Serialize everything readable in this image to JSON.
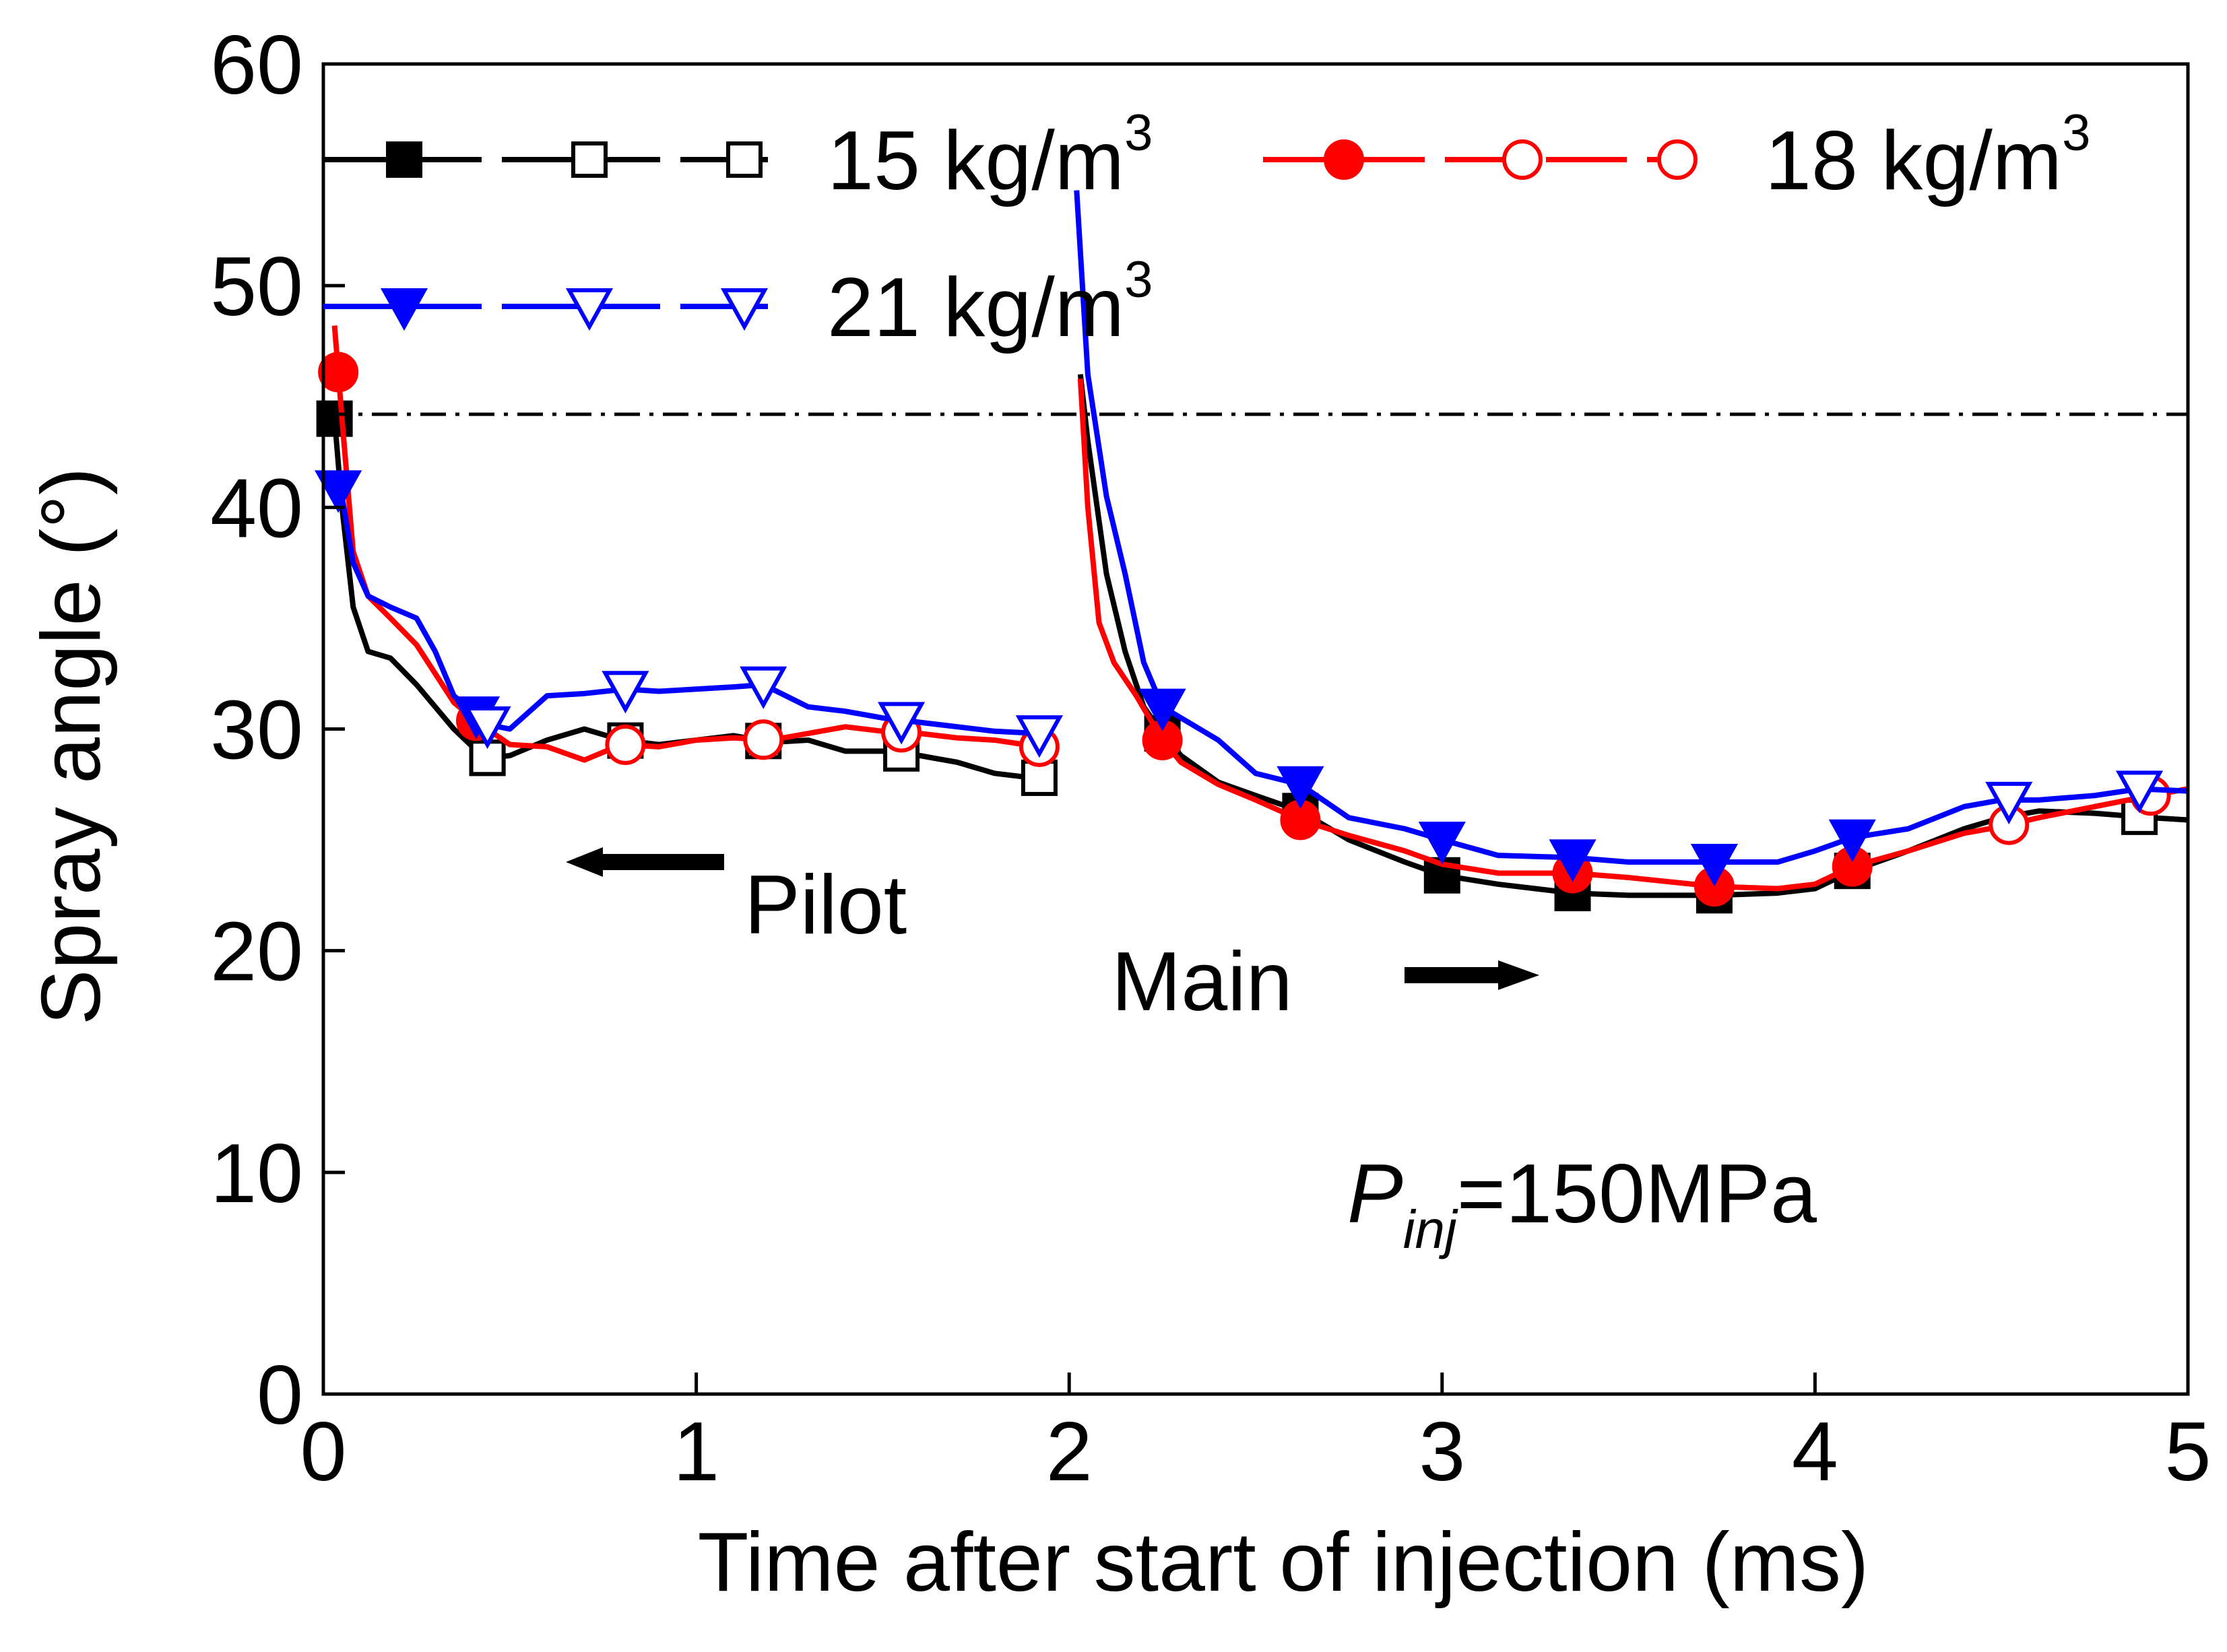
{
  "chart_data": {
    "type": "line",
    "xlabel": "Time after start of injection (ms)",
    "ylabel": "Spray angle (°)",
    "xlim": [
      0,
      5
    ],
    "ylim": [
      0,
      60
    ],
    "xticks": [
      0,
      1,
      2,
      3,
      4,
      5
    ],
    "yticks": [
      0,
      10,
      20,
      30,
      40,
      50,
      60
    ],
    "grid": false,
    "legend_position": "top",
    "reference_line": {
      "y": 44.2,
      "style": "dash-dot"
    },
    "annotations": {
      "pilot": "Pilot",
      "main": "Main",
      "pressure_prefix": "P",
      "pressure_subscript": "inj",
      "pressure_value": "=150MPa"
    },
    "series": [
      {
        "name": "15 kg/m",
        "name_sup": "3",
        "color": "#000000",
        "marker": "square",
        "pilot": {
          "x": [
            0.03,
            0.05,
            0.08,
            0.12,
            0.18,
            0.25,
            0.3,
            0.35,
            0.4,
            0.44,
            0.5,
            0.6,
            0.7,
            0.8,
            0.9,
            1.0,
            1.1,
            1.2,
            1.3,
            1.4,
            1.5,
            1.6,
            1.7,
            1.8,
            1.9
          ],
          "y": [
            44.0,
            40.0,
            35.5,
            33.5,
            33.2,
            32.0,
            31.0,
            30.0,
            29.2,
            28.7,
            28.8,
            29.5,
            30.0,
            29.5,
            29.3,
            29.5,
            29.7,
            29.4,
            29.5,
            29.0,
            29.0,
            28.8,
            28.5,
            28.0,
            27.8
          ],
          "markers_filled_x": [
            0.03,
            0.44
          ],
          "markers_open_x": [
            0.44,
            0.81,
            1.18,
            1.55,
            1.92
          ]
        },
        "main": {
          "x": [
            2.03,
            2.05,
            2.1,
            2.15,
            2.2,
            2.25,
            2.3,
            2.4,
            2.5,
            2.62,
            2.75,
            2.9,
            3.0,
            3.15,
            3.35,
            3.5,
            3.73,
            3.9,
            4.0,
            4.1,
            4.25,
            4.4,
            4.5,
            4.6,
            4.75,
            4.9,
            5.0
          ],
          "y": [
            46.0,
            43.0,
            37.0,
            33.5,
            31.0,
            29.8,
            28.8,
            27.6,
            27.0,
            26.3,
            25.0,
            24.0,
            23.4,
            23.0,
            22.6,
            22.5,
            22.5,
            22.6,
            22.8,
            23.6,
            24.5,
            25.5,
            26.0,
            26.3,
            26.2,
            26.0,
            25.9
          ],
          "markers_filled_x": [
            2.25,
            2.62,
            3.0,
            3.35,
            3.73,
            4.1
          ],
          "markers_open_x": [
            4.87
          ]
        }
      },
      {
        "name": "18 kg/m",
        "name_sup": "3",
        "color": "#ff0000",
        "marker": "circle",
        "pilot": {
          "x": [
            0.03,
            0.05,
            0.08,
            0.12,
            0.18,
            0.25,
            0.3,
            0.35,
            0.4,
            0.44,
            0.5,
            0.6,
            0.7,
            0.8,
            0.9,
            1.0,
            1.1,
            1.2,
            1.3,
            1.4,
            1.5,
            1.6,
            1.7,
            1.8,
            1.92
          ],
          "y": [
            48.2,
            44.0,
            38.0,
            36.0,
            35.0,
            33.8,
            32.5,
            31.2,
            30.5,
            30.0,
            29.3,
            29.2,
            28.6,
            29.3,
            29.2,
            29.5,
            29.6,
            29.5,
            29.8,
            30.1,
            29.9,
            29.8,
            29.6,
            29.5,
            29.2
          ],
          "markers_filled_x": [
            0.04,
            0.41
          ],
          "markers_open_x": [
            0.81,
            1.18,
            1.55,
            1.92
          ]
        },
        "main": {
          "x": [
            2.03,
            2.05,
            2.08,
            2.12,
            2.18,
            2.25,
            2.3,
            2.4,
            2.5,
            2.62,
            2.75,
            2.9,
            3.0,
            3.15,
            3.35,
            3.5,
            3.73,
            3.9,
            4.0,
            4.1,
            4.25,
            4.4,
            4.5,
            4.6,
            4.75,
            4.9,
            5.0
          ],
          "y": [
            45.8,
            40.0,
            34.8,
            33.0,
            31.5,
            29.5,
            28.5,
            27.5,
            26.8,
            25.9,
            25.2,
            24.5,
            23.9,
            23.5,
            23.5,
            23.3,
            22.9,
            22.8,
            23.0,
            23.8,
            24.5,
            25.3,
            25.6,
            26.0,
            26.5,
            27.0,
            27.3
          ],
          "markers_filled_x": [
            2.25,
            2.62,
            3.35,
            3.73,
            4.1
          ],
          "markers_open_x": [
            4.52,
            4.9
          ]
        }
      },
      {
        "name": "21 kg/m",
        "name_sup": "3",
        "color": "#0000ff",
        "marker": "triangle-down",
        "pilot": {
          "x": [
            0.03,
            0.05,
            0.08,
            0.12,
            0.18,
            0.25,
            0.3,
            0.35,
            0.4,
            0.44,
            0.5,
            0.6,
            0.7,
            0.81,
            0.9,
            1.0,
            1.1,
            1.18,
            1.3,
            1.4,
            1.5,
            1.6,
            1.7,
            1.8,
            1.92
          ],
          "y": [
            41.2,
            40.5,
            37.5,
            36.0,
            35.5,
            35.0,
            33.5,
            31.5,
            30.8,
            30.2,
            30.0,
            31.5,
            31.6,
            31.8,
            31.7,
            31.8,
            31.9,
            32.0,
            31.0,
            30.8,
            30.5,
            30.3,
            30.1,
            29.9,
            29.8
          ],
          "markers_filled_x": [
            0.04,
            0.41
          ],
          "markers_open_x": [
            0.44,
            0.81,
            1.18,
            1.55,
            1.92
          ]
        },
        "main": {
          "x": [
            2.02,
            2.05,
            2.1,
            2.15,
            2.2,
            2.25,
            2.3,
            2.4,
            2.5,
            2.62,
            2.75,
            2.9,
            3.0,
            3.15,
            3.35,
            3.5,
            3.73,
            3.9,
            4.0,
            4.1,
            4.25,
            4.4,
            4.5,
            4.6,
            4.75,
            4.87,
            5.0
          ],
          "y": [
            54.3,
            46.0,
            40.5,
            37.0,
            33.0,
            31.0,
            30.5,
            29.5,
            28.0,
            27.5,
            26.0,
            25.5,
            25.0,
            24.3,
            24.2,
            24.0,
            24.0,
            24.0,
            24.5,
            25.1,
            25.5,
            26.5,
            26.8,
            26.8,
            27.0,
            27.3,
            27.2
          ],
          "markers_filled_x": [
            2.25,
            2.62,
            3.0,
            3.35,
            3.73,
            4.1
          ],
          "markers_open_x": [
            4.52,
            4.87
          ]
        }
      }
    ]
  }
}
